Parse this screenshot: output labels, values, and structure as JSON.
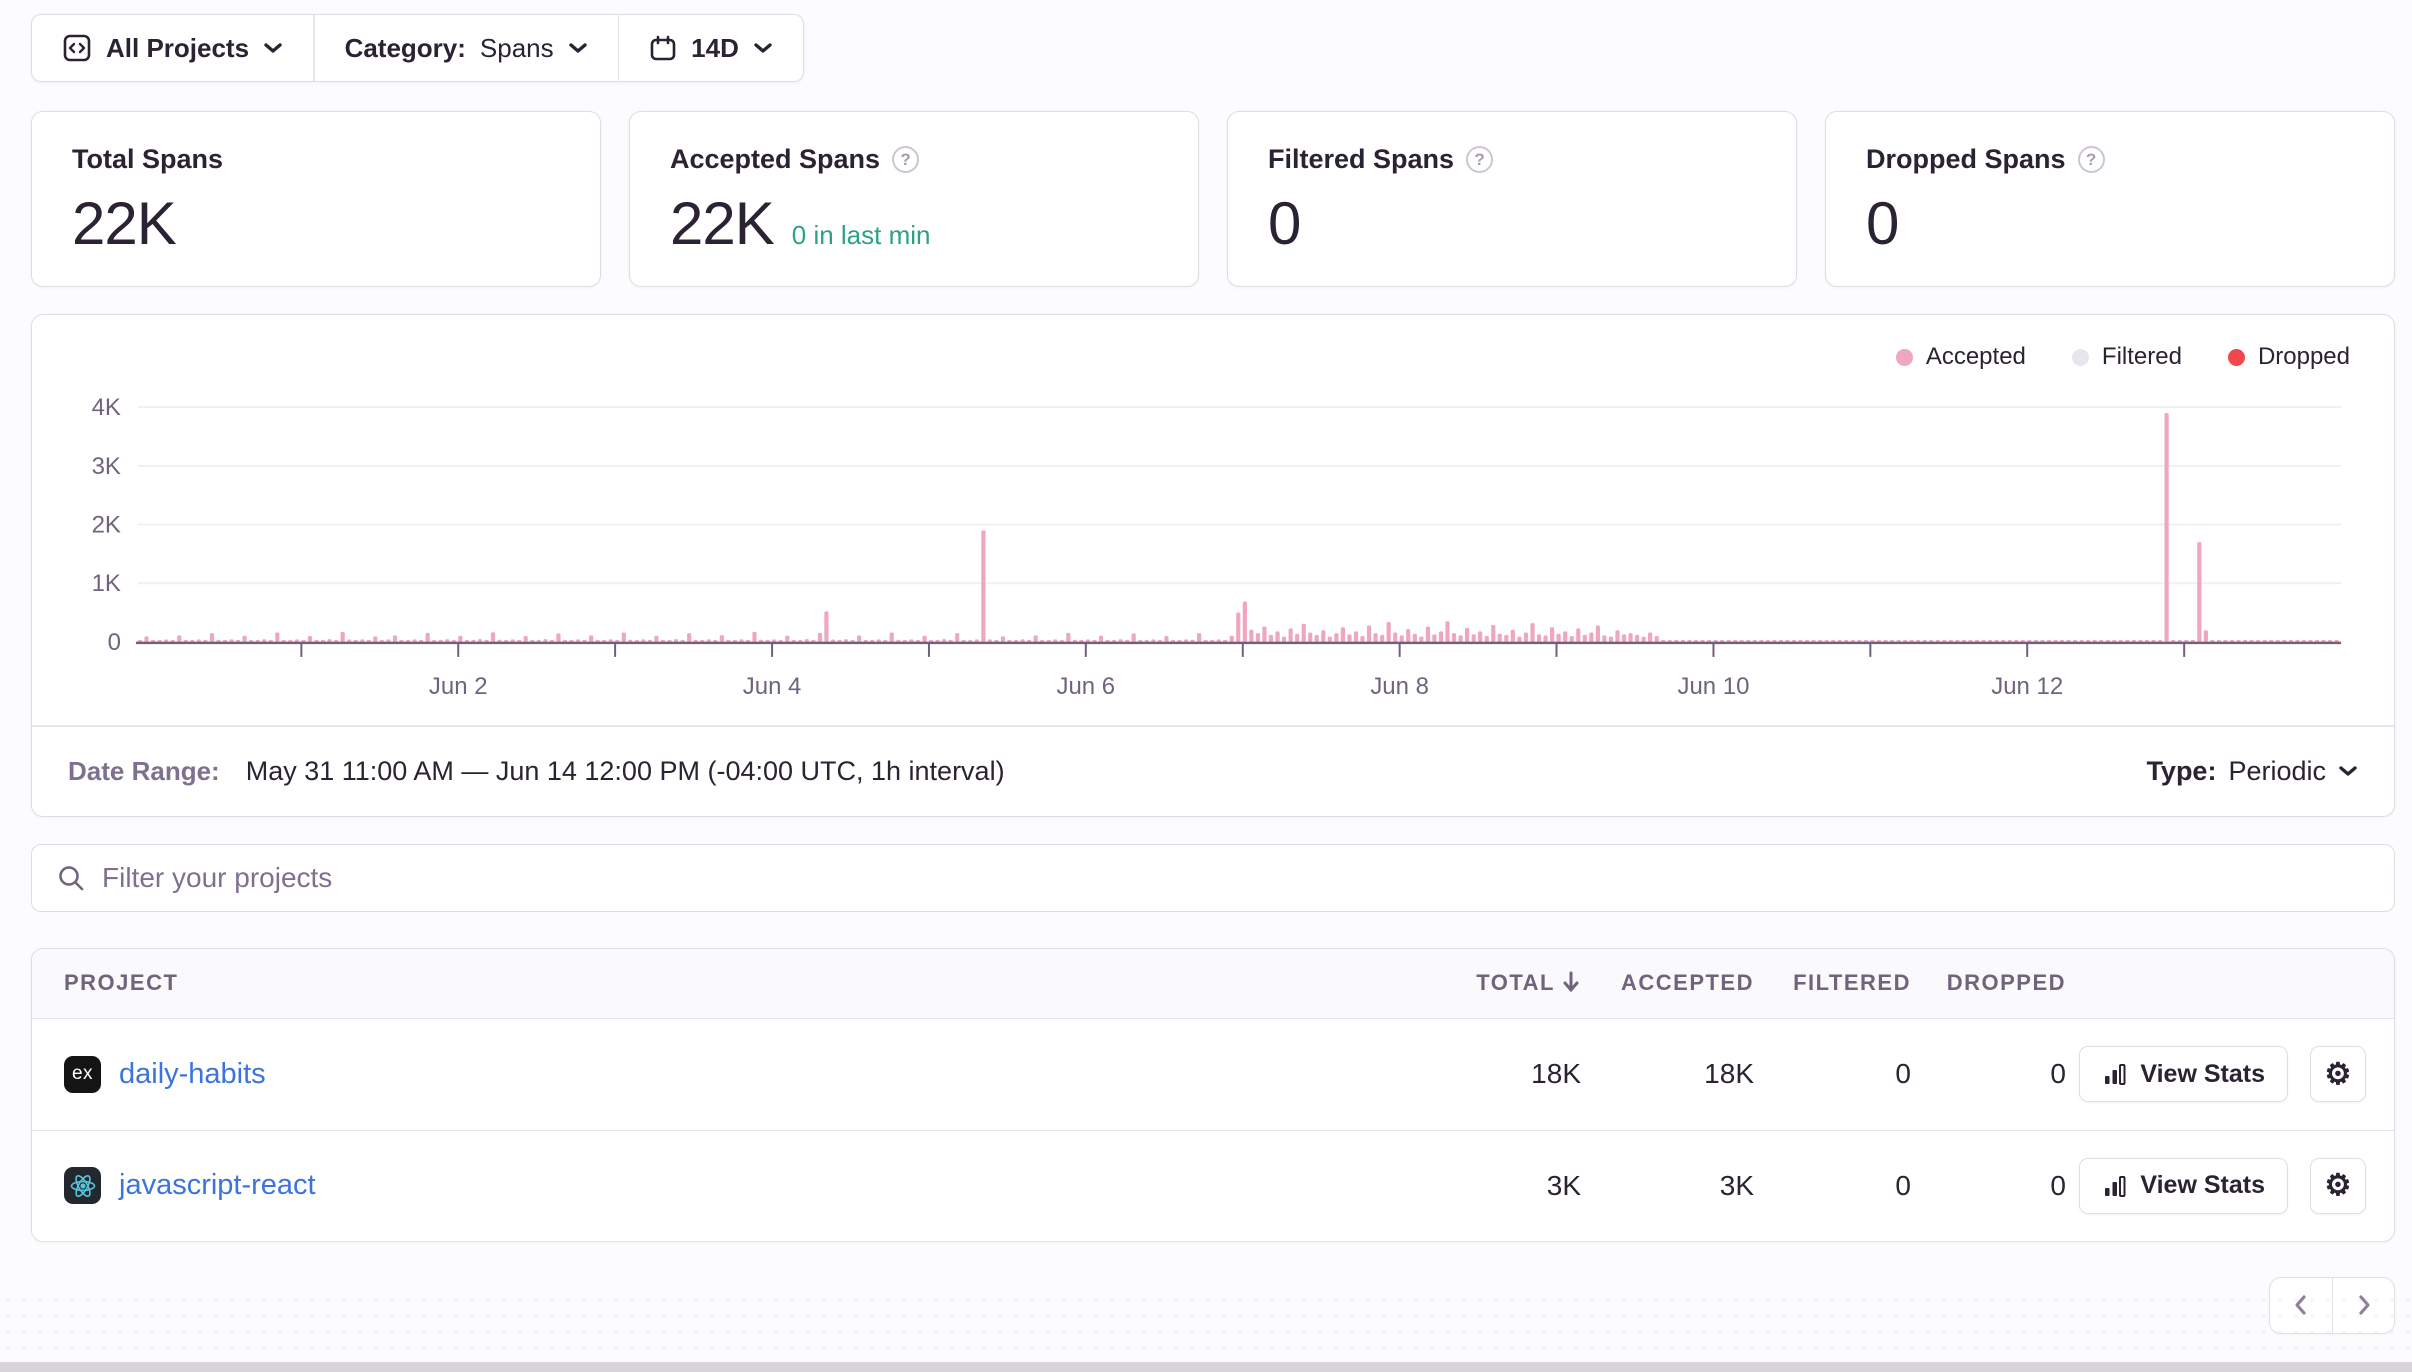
{
  "filters": {
    "projects": {
      "label": "All Projects"
    },
    "category": {
      "label": "Category:",
      "value": "Spans"
    },
    "date_range": {
      "value": "14D"
    }
  },
  "cards": [
    {
      "title": "Total Spans",
      "value": "22K"
    },
    {
      "title": "Accepted Spans",
      "value": "22K",
      "sub": "0 in last min"
    },
    {
      "title": "Filtered Spans",
      "value": "0"
    },
    {
      "title": "Dropped Spans",
      "value": "0"
    }
  ],
  "chart_data": {
    "type": "bar",
    "x_start": "May 31 11:00 AM",
    "x_end": "Jun 14 12:00 PM",
    "interval": "1h",
    "x_tick_labels": [
      "Jun 2",
      "Jun 4",
      "Jun 6",
      "Jun 8",
      "Jun 10",
      "Jun 12"
    ],
    "y_tick_labels": [
      "0",
      "1K",
      "2K",
      "3K",
      "4K"
    ],
    "ylim": [
      0,
      4300
    ],
    "grid": true,
    "legend_position": "top-right",
    "legend": [
      {
        "label": "Accepted",
        "color": "#efa6bf"
      },
      {
        "label": "Filtered",
        "color": "#e9e5ee"
      },
      {
        "label": "Dropped",
        "color": "#f1484f"
      }
    ],
    "series": [
      {
        "name": "Accepted",
        "color": "#efa6bf",
        "values": [
          25,
          95,
          30,
          20,
          40,
          28,
          110,
          35,
          22,
          45,
          30,
          150,
          38,
          24,
          42,
          28,
          105,
          30,
          22,
          46,
          28,
          160,
          36,
          25,
          44,
          30,
          100,
          33,
          21,
          48,
          29,
          170,
          40,
          26,
          45,
          31,
          95,
          28,
          45,
          110,
          30,
          22,
          44,
          29,
          155,
          35,
          24,
          46,
          31,
          105,
          34,
          23,
          47,
          28,
          165,
          38,
          26,
          43,
          30,
          100,
          33,
          22,
          48,
          30,
          145,
          36,
          25,
          45,
          29,
          110,
          34,
          24,
          46,
          30,
          160,
          37,
          26,
          44,
          28,
          105,
          33,
          23,
          47,
          31,
          150,
          35,
          25,
          45,
          30,
          115,
          36,
          24,
          46,
          29,
          170,
          38,
          27,
          44,
          31,
          108,
          34,
          23,
          48,
          30,
          155,
          520,
          40,
          28,
          46,
          31,
          112,
          35,
          24,
          45,
          29,
          160,
          37,
          26,
          44,
          30,
          105,
          34,
          22,
          47,
          28,
          150,
          36,
          25,
          43,
          1900,
          45,
          30,
          95,
          33,
          23,
          46,
          29,
          110,
          35,
          25,
          44,
          30,
          155,
          37,
          24,
          45,
          28,
          108,
          33,
          22,
          46,
          30,
          145,
          36,
          26,
          43,
          29,
          100,
          34,
          23,
          45,
          28,
          150,
          35,
          25,
          44,
          30,
          105,
          500,
          690,
          210,
          150,
          260,
          120,
          180,
          90,
          230,
          140,
          310,
          160,
          120,
          200,
          90,
          150,
          250,
          130,
          180,
          100,
          280,
          150,
          120,
          340,
          160,
          110,
          220,
          140,
          90,
          260,
          130,
          180,
          350,
          150,
          110,
          240,
          130,
          180,
          100,
          290,
          140,
          120,
          210,
          90,
          160,
          320,
          130,
          110,
          250,
          140,
          180,
          100,
          230,
          120,
          160,
          280,
          110,
          90,
          200,
          130,
          150,
          120,
          90,
          160,
          100,
          22,
          18,
          25,
          20,
          16,
          24,
          19,
          22,
          17,
          25,
          20,
          18,
          23,
          19,
          24,
          21,
          17,
          25,
          20,
          22,
          18,
          24,
          20,
          16,
          23,
          19,
          25,
          21,
          17,
          24,
          20,
          22,
          18,
          25,
          19,
          23,
          20,
          17,
          24,
          21,
          18,
          25,
          20,
          16,
          22,
          19,
          24,
          20,
          17,
          23,
          21,
          25,
          18,
          22,
          20,
          24,
          17,
          23,
          19,
          21,
          25,
          18,
          22,
          20,
          24,
          19,
          17,
          23,
          20,
          24,
          18,
          22,
          25,
          19,
          21,
          17,
          23,
          3900,
          20,
          24,
          18,
          22,
          1700,
          200,
          25,
          21,
          18,
          24,
          20,
          22,
          19,
          25,
          21,
          18,
          24,
          20,
          22,
          19,
          25,
          21,
          18,
          23,
          20,
          24
        ]
      }
    ]
  },
  "date_range_row": {
    "label": "Date Range:",
    "value": "May 31 11:00 AM — Jun 14 12:00 PM (-04:00 UTC, 1h interval)",
    "type_label": "Type:",
    "type_value": "Periodic"
  },
  "search": {
    "placeholder": "Filter your projects"
  },
  "table": {
    "columns": [
      "PROJECT",
      "TOTAL",
      "ACCEPTED",
      "FILTERED",
      "DROPPED"
    ],
    "sorted_by": "TOTAL",
    "rows": [
      {
        "name": "daily-habits",
        "platform": "express",
        "icon_text": "ex",
        "total": "18K",
        "accepted": "18K",
        "filtered": "0",
        "dropped": "0",
        "action": "View Stats"
      },
      {
        "name": "javascript-react",
        "platform": "react",
        "total": "3K",
        "accepted": "3K",
        "filtered": "0",
        "dropped": "0",
        "action": "View Stats"
      }
    ]
  },
  "colors": {
    "accepted_pink": "#efa6bf",
    "filtered_gray": "#e9e5ee",
    "dropped_red": "#f1484f",
    "green_live": "#2ba185",
    "link_blue": "#3c74dd",
    "text_dark": "#2b2233",
    "text_muted": "#80708f",
    "border": "#e0dce5"
  }
}
